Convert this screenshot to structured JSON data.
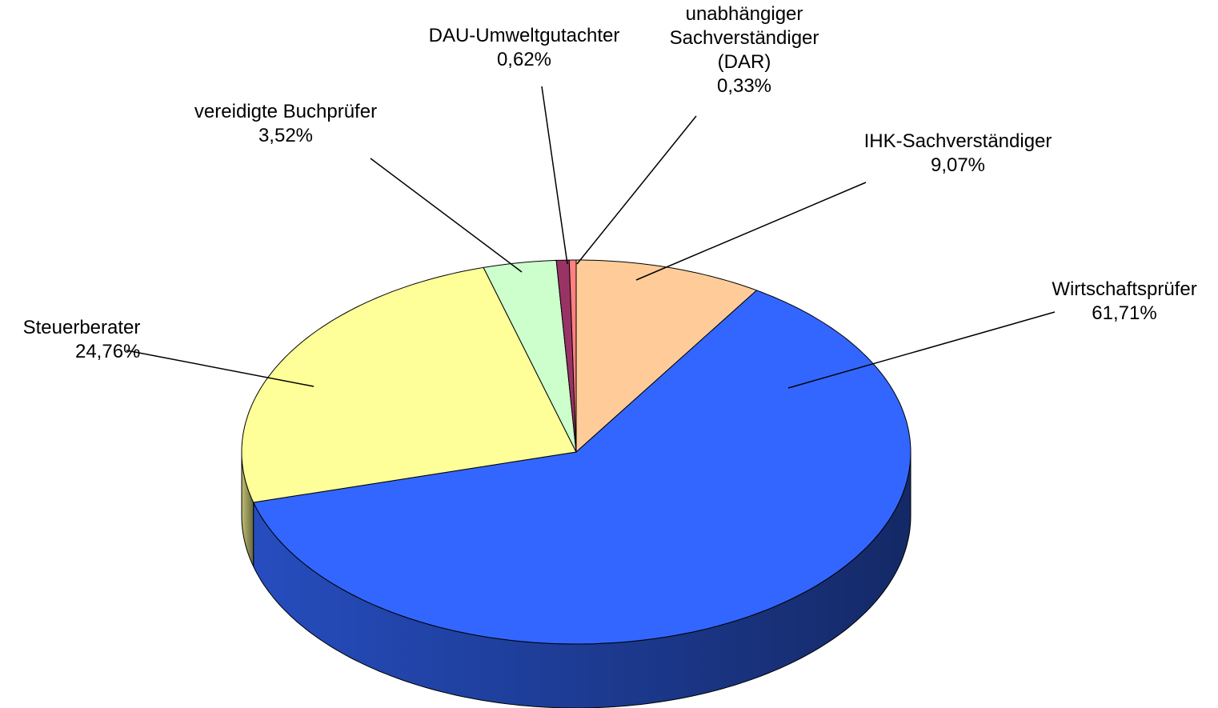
{
  "chart_data": {
    "type": "pie3d",
    "categories": [
      "IHK-Sachverständiger",
      "Wirtschaftsprüfer",
      "Steuerberater",
      "vereidigte Buchprüfer",
      "DAU-Umweltgutachter",
      "unabhängiger Sachverständiger (DAR)"
    ],
    "values": [
      9.07,
      61.71,
      24.76,
      3.52,
      0.62,
      0.33
    ],
    "value_labels": [
      "9,07%",
      "61,71%",
      "24,76%",
      "3,52%",
      "0,62%",
      "0,33%"
    ],
    "colors": [
      "#ffcc99",
      "#3366ff",
      "#ffff99",
      "#ccffcc",
      "#993366",
      "#ff8080"
    ]
  }
}
